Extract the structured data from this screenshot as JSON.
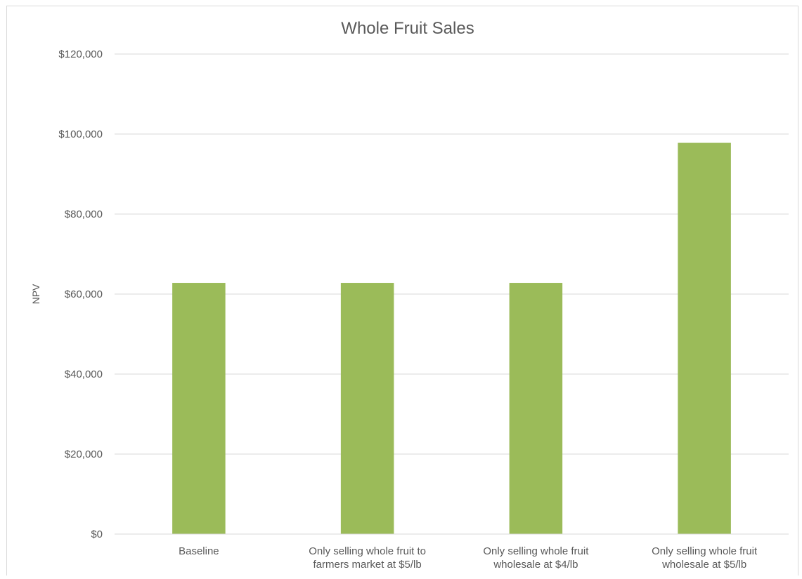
{
  "chart_data": {
    "type": "bar",
    "title": "Whole Fruit Sales",
    "xlabel": "",
    "ylabel": "NPV",
    "ylim": [
      0,
      120000
    ],
    "yticks": [
      {
        "value": 0,
        "label": "$0"
      },
      {
        "value": 20000,
        "label": "$20,000"
      },
      {
        "value": 40000,
        "label": "$40,000"
      },
      {
        "value": 60000,
        "label": "$60,000"
      },
      {
        "value": 80000,
        "label": "$80,000"
      },
      {
        "value": 100000,
        "label": "$100,000"
      },
      {
        "value": 120000,
        "label": "$120,000"
      }
    ],
    "categories": [
      [
        "Baseline"
      ],
      [
        "Only selling whole fruit to",
        "farmers market at $5/lb"
      ],
      [
        "Only selling whole fruit",
        "wholesale at $4/lb"
      ],
      [
        "Only selling whole fruit",
        "wholesale at $5/lb"
      ]
    ],
    "values": [
      62800,
      62800,
      62800,
      97800
    ],
    "grid": true,
    "legend": "none",
    "colors": {
      "bar": "#9bbb59",
      "grid": "#d9d9d9",
      "text": "#595959",
      "border": "#d9d9d9"
    }
  }
}
